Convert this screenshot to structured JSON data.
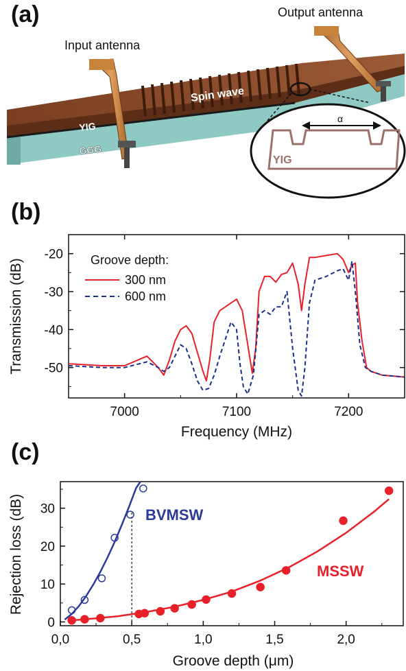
{
  "panel_a": {
    "label": "(a)",
    "input_antenna": "Input antenna",
    "output_antenna": "Output antenna",
    "spin_wave": "Spin wave",
    "yig": "YIG",
    "ggg": "GGG",
    "inset_yig": "YIG",
    "inset_symbol": "α",
    "colors": {
      "yig_top": "#8a4a2a",
      "yig_side": "#6b3820",
      "ggg": "#8fc9c4",
      "antenna": "#c9843c"
    }
  },
  "panel_b": {
    "label": "(b)",
    "legend_title": "Groove depth:"
  },
  "panel_c": {
    "label": "(c)",
    "label_bvmsw": "BVMSW",
    "label_mssw": "MSSW"
  },
  "chart_data": [
    {
      "type": "line",
      "xlabel": "Frequency (MHz)",
      "ylabel": "Transmission (dB)",
      "xlim": [
        6950,
        7250
      ],
      "ylim": [
        -58,
        -15
      ],
      "xticks": [
        7000,
        7100,
        7200
      ],
      "xtick_labels": [
        "7000",
        "7100",
        "7200"
      ],
      "yticks": [
        -20,
        -30,
        -40,
        -50
      ],
      "ytick_labels": [
        "-20",
        "-30",
        "-40",
        "-50"
      ],
      "legend": "top-left",
      "series": [
        {
          "name": "300 nm",
          "color": "#e8202a",
          "style": "solid",
          "x": [
            6950,
            6980,
            7000,
            7020,
            7030,
            7035,
            7040,
            7045,
            7050,
            7055,
            7060,
            7065,
            7070,
            7073,
            7076,
            7080,
            7085,
            7090,
            7095,
            7100,
            7105,
            7110,
            7114,
            7117,
            7120,
            7125,
            7130,
            7135,
            7140,
            7145,
            7150,
            7155,
            7158,
            7161,
            7165,
            7170,
            7180,
            7190,
            7195,
            7200,
            7203,
            7206,
            7208,
            7212,
            7216,
            7220,
            7230,
            7250
          ],
          "y": [
            -49,
            -49.5,
            -49.5,
            -47,
            -50,
            -52,
            -48,
            -43,
            -40,
            -39,
            -41,
            -46,
            -51,
            -53.5,
            -48,
            -38,
            -35,
            -34,
            -33,
            -32,
            -35,
            -44,
            -51.5,
            -45,
            -30,
            -26,
            -26,
            -27.5,
            -25.5,
            -25,
            -22.5,
            -28,
            -35,
            -28,
            -21,
            -21,
            -20.5,
            -20,
            -21.5,
            -25,
            -23,
            -22.5,
            -33,
            -43,
            -50,
            -51,
            -52,
            -52.5
          ]
        },
        {
          "name": "600 nm",
          "color": "#1a2f8a",
          "style": "dashed",
          "x": [
            6950,
            6980,
            7000,
            7020,
            7030,
            7035,
            7040,
            7045,
            7050,
            7055,
            7060,
            7065,
            7070,
            7075,
            7080,
            7085,
            7090,
            7095,
            7100,
            7103,
            7106,
            7110,
            7115,
            7120,
            7125,
            7130,
            7135,
            7140,
            7145,
            7150,
            7155,
            7158,
            7161,
            7165,
            7170,
            7180,
            7190,
            7195,
            7200,
            7203,
            7206,
            7210,
            7215,
            7220,
            7230,
            7250
          ],
          "y": [
            -49.5,
            -50,
            -50,
            -48.5,
            -50,
            -51,
            -50,
            -47,
            -44,
            -45,
            -49,
            -53.5,
            -56,
            -55.5,
            -52,
            -47,
            -42.5,
            -38,
            -40,
            -49,
            -55,
            -57,
            -52,
            -36,
            -35,
            -36,
            -34,
            -34,
            -30,
            -45,
            -56,
            -57.5,
            -50,
            -33,
            -27,
            -26,
            -24.5,
            -24,
            -27,
            -22,
            -30,
            -44,
            -50,
            -51,
            -52,
            -52.5
          ]
        }
      ]
    },
    {
      "type": "scatter",
      "xlabel": "Groove depth (μm)",
      "ylabel": "Rejection loss (dB)",
      "xlim": [
        0,
        2.4
      ],
      "ylim": [
        -1,
        37
      ],
      "xticks": [
        0,
        0.5,
        1.0,
        1.5,
        2.0
      ],
      "xtick_labels": [
        "0,0",
        "0,5",
        "1,0",
        "1,5",
        "2,0"
      ],
      "yticks": [
        0,
        10,
        20,
        30
      ],
      "ytick_labels": [
        "0",
        "10",
        "20",
        "30"
      ],
      "vline_x": 0.5,
      "series": [
        {
          "name": "BVMSW",
          "color": "#2b3a9a",
          "marker": "open-circle",
          "x": [
            0.08,
            0.17,
            0.29,
            0.38,
            0.49,
            0.58
          ],
          "y": [
            3.1,
            5.8,
            11.5,
            22.2,
            28.3,
            35.2
          ],
          "fit_x": [
            0.03,
            0.08,
            0.13,
            0.18,
            0.23,
            0.28,
            0.33,
            0.38,
            0.43,
            0.48,
            0.53,
            0.56
          ],
          "fit_y": [
            0.6,
            2.1,
            4.2,
            6.8,
            9.8,
            13.2,
            17.0,
            21.1,
            25.6,
            30.3,
            35.3,
            38.0
          ]
        },
        {
          "name": "MSSW",
          "color": "#e8202a",
          "marker": "filled-circle",
          "x": [
            0.08,
            0.17,
            0.28,
            0.55,
            0.59,
            0.7,
            0.8,
            0.92,
            1.02,
            1.2,
            1.4,
            1.58,
            1.98,
            2.3
          ],
          "y": [
            0.4,
            0.7,
            1.0,
            2.1,
            2.3,
            2.8,
            3.6,
            4.6,
            5.9,
            7.5,
            9.2,
            13.6,
            26.7,
            34.6
          ],
          "fit_x": [
            0.05,
            0.2,
            0.4,
            0.6,
            0.8,
            1.0,
            1.2,
            1.4,
            1.6,
            1.8,
            2.0,
            2.2,
            2.3
          ],
          "fit_y": [
            0.3,
            0.8,
            1.5,
            2.6,
            4.0,
            5.8,
            8.0,
            10.9,
            14.4,
            18.6,
            23.5,
            29.2,
            32.4
          ]
        }
      ]
    }
  ]
}
